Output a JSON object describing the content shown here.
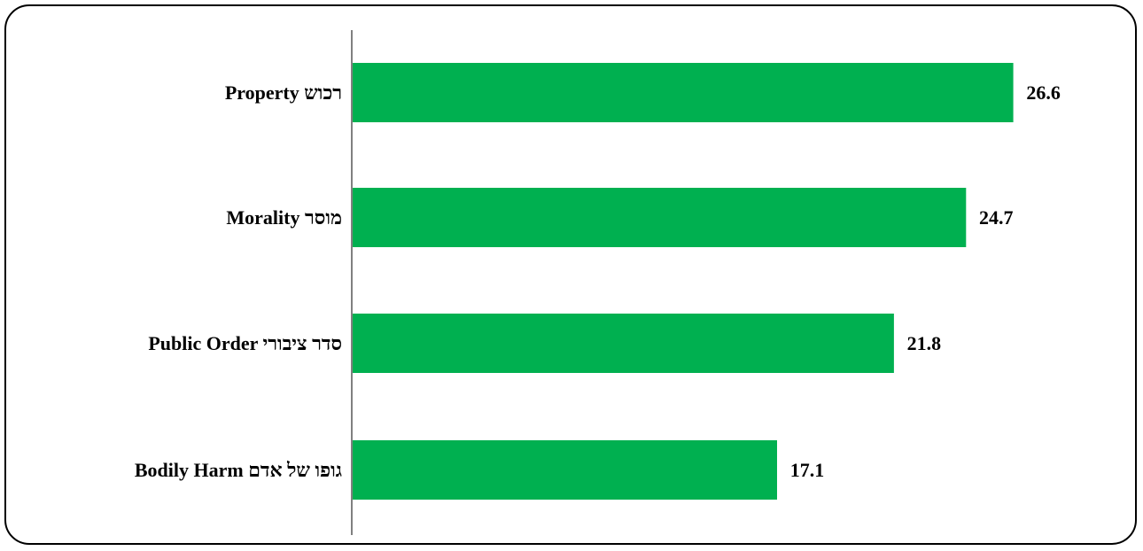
{
  "chart_data": {
    "type": "bar",
    "orientation": "horizontal",
    "categories": [
      "Property רכוש",
      "Morality מוסר",
      "Public Order סדר ציבורי",
      "Bodily Harm גופו של אדם"
    ],
    "values": [
      26.6,
      24.7,
      21.8,
      17.1
    ],
    "value_labels": [
      "26.6",
      "24.7",
      "21.8",
      "17.1"
    ],
    "title": "",
    "xlabel": "",
    "ylabel": "",
    "xlim": [
      0,
      29
    ],
    "grid": false,
    "legend": "none",
    "colors": {
      "bar": "#00B050",
      "axis": "#808080",
      "frame": "#000000"
    }
  }
}
